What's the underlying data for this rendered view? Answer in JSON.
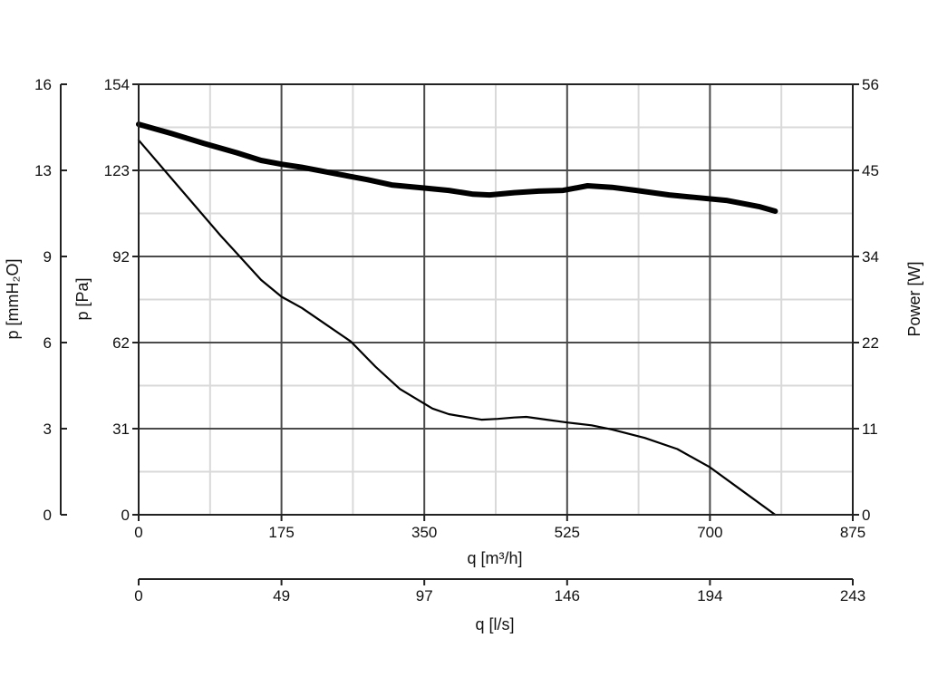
{
  "chart_data": {
    "type": "line",
    "xlabel": "q [m³/h]",
    "x2label": "q [l/s]",
    "ylabel": "p [Pa]",
    "ylabel_mm": "p [mmH₂O]",
    "ylabel_right": "Power [W]",
    "xlim": [
      0,
      875
    ],
    "ylim": [
      0,
      154
    ],
    "y_right_lim": [
      0,
      56
    ],
    "x_ticks": [
      "0",
      "175",
      "350",
      "525",
      "700",
      "875"
    ],
    "x2_ticks": [
      "0",
      "49",
      "97",
      "146",
      "194",
      "243"
    ],
    "y_ticks": [
      "0",
      "31",
      "62",
      "92",
      "123",
      "154"
    ],
    "y_mm_ticks": [
      "0",
      "3",
      "6",
      "9",
      "13",
      "16"
    ],
    "y_right_ticks": [
      "0",
      "11",
      "22",
      "34",
      "45",
      "56"
    ],
    "grid": true,
    "legend": "none",
    "series": [
      {
        "axis": "right",
        "style": "thick",
        "x": [
          0,
          40,
          80,
          120,
          150,
          175,
          200,
          240,
          280,
          310,
          350,
          380,
          410,
          430,
          460,
          490,
          520,
          550,
          580,
          610,
          650,
          680,
          720,
          760,
          780
        ],
        "y": [
          50.8,
          49.6,
          48.3,
          47.1,
          46.1,
          45.6,
          45.2,
          44.4,
          43.6,
          42.9,
          42.5,
          42.2,
          41.7,
          41.6,
          41.9,
          42.1,
          42.2,
          42.8,
          42.6,
          42.2,
          41.6,
          41.3,
          40.9,
          40.1,
          39.5
        ]
      },
      {
        "axis": "left",
        "style": "thin",
        "x": [
          0,
          50,
          100,
          150,
          175,
          200,
          230,
          260,
          290,
          320,
          360,
          380,
          420,
          440,
          460,
          475,
          500,
          525,
          555,
          580,
          620,
          660,
          700,
          740,
          780
        ],
        "y": [
          134,
          117,
          100,
          84,
          78,
          74,
          68,
          62,
          53,
          45,
          38,
          36,
          34,
          34.3,
          34.8,
          35,
          34,
          33,
          32,
          30.5,
          27.5,
          23.5,
          17,
          8.5,
          0
        ]
      }
    ]
  }
}
